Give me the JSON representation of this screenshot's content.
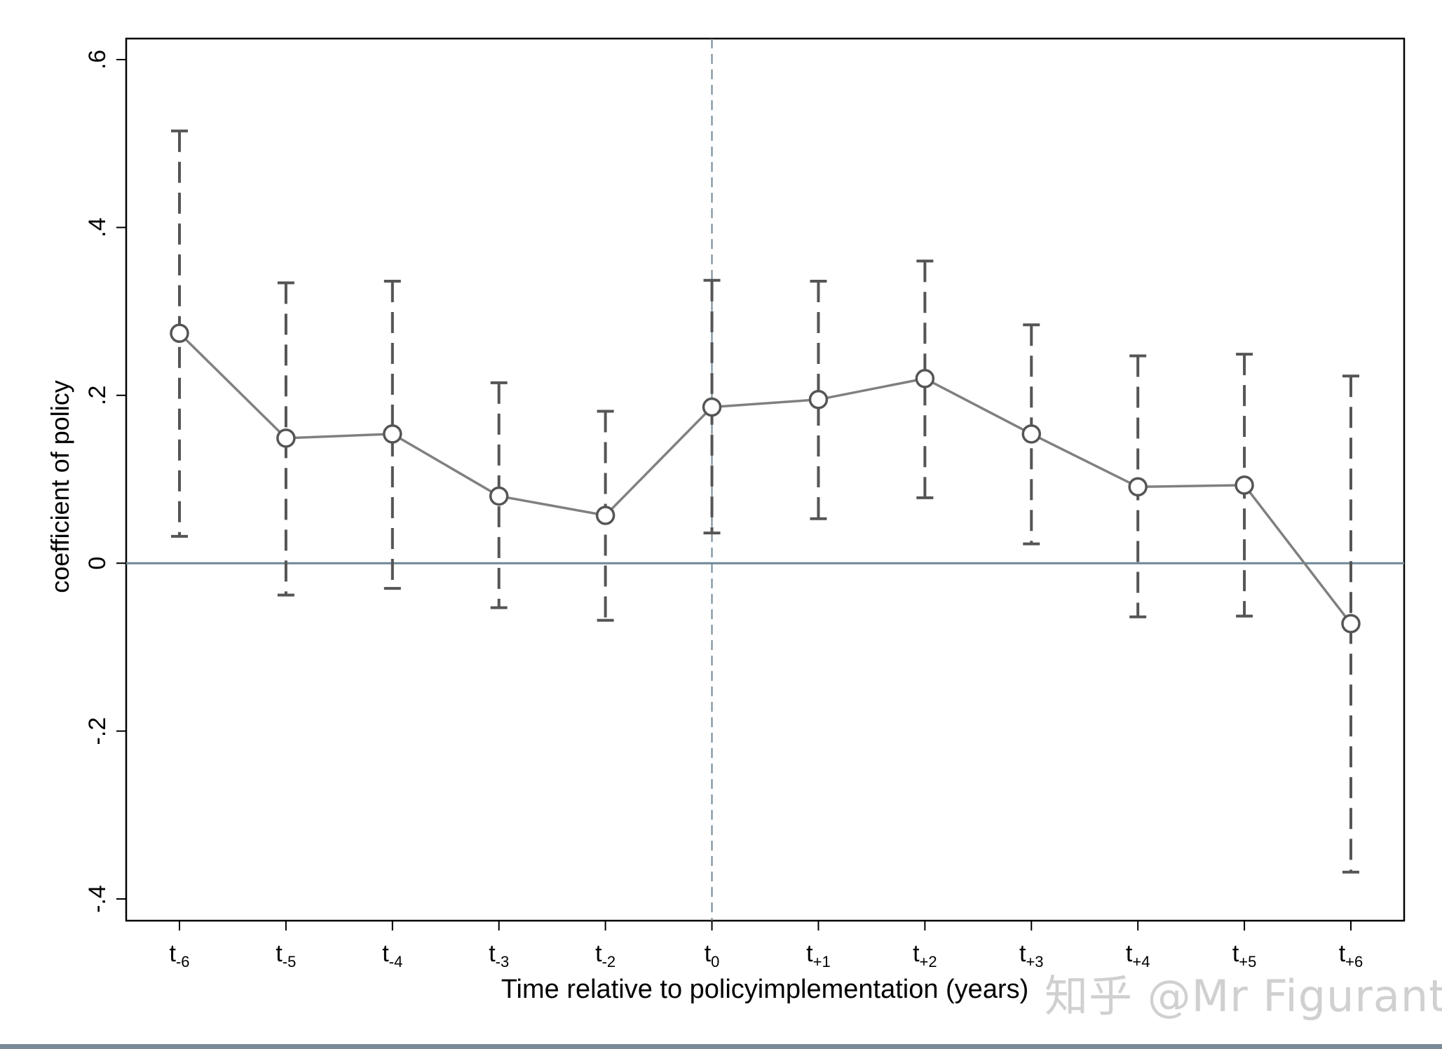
{
  "chart_data": {
    "type": "line",
    "title": "",
    "xlabel": "Time relative to policyimplementation (years)",
    "ylabel": "coefficient of policy",
    "ylim": [
      -0.4,
      0.6
    ],
    "y_ticks": [
      {
        "value": -0.4,
        "label": "-.4"
      },
      {
        "value": -0.2,
        "label": "-.2"
      },
      {
        "value": 0,
        "label": "0"
      },
      {
        "value": 0.2,
        "label": ".2"
      },
      {
        "value": 0.4,
        "label": ".4"
      },
      {
        "value": 0.6,
        "label": ".6"
      }
    ],
    "categories": [
      {
        "base": "t",
        "sub": "-6"
      },
      {
        "base": "t",
        "sub": "-5"
      },
      {
        "base": "t",
        "sub": "-4"
      },
      {
        "base": "t",
        "sub": "-3"
      },
      {
        "base": "t",
        "sub": "-2"
      },
      {
        "base": "t",
        "sub": "0"
      },
      {
        "base": "t",
        "sub": "+1"
      },
      {
        "base": "t",
        "sub": "+2"
      },
      {
        "base": "t",
        "sub": "+3"
      },
      {
        "base": "t",
        "sub": "+4"
      },
      {
        "base": "t",
        "sub": "+5"
      },
      {
        "base": "t",
        "sub": "+6"
      }
    ],
    "series": [
      {
        "name": "coefficient",
        "values": [
          0.274,
          0.149,
          0.154,
          0.08,
          0.057,
          0.186,
          0.195,
          0.22,
          0.154,
          0.091,
          0.093,
          -0.072
        ],
        "ci_lower": [
          0.032,
          -0.038,
          -0.03,
          -0.053,
          -0.068,
          0.036,
          0.053,
          0.078,
          0.023,
          -0.064,
          -0.063,
          -0.368
        ],
        "ci_upper": [
          0.515,
          0.334,
          0.336,
          0.215,
          0.181,
          0.337,
          0.336,
          0.36,
          0.284,
          0.247,
          0.249,
          0.223
        ]
      }
    ],
    "reference_lines": {
      "horizontal_value": 0,
      "vertical_category_index": 5
    },
    "colors": {
      "series_line": "#808080",
      "markers": "#555555",
      "ci_bars": "#555555",
      "zero_line": "#6e8796",
      "vertical_line": "#6e8796",
      "axis": "#000000"
    }
  },
  "watermark": {
    "text": "知乎 @Mr Figurant"
  }
}
